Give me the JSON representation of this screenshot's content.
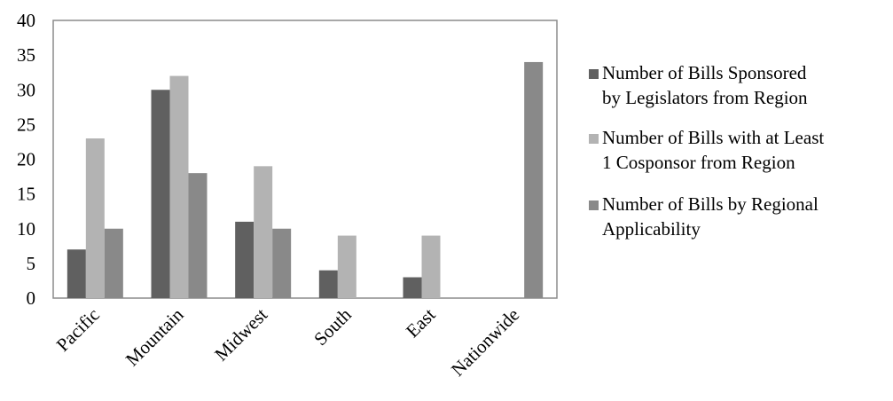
{
  "chart_data": {
    "type": "bar",
    "categories": [
      "Pacific",
      "Mountain",
      "Midwest",
      "South",
      "East",
      "Nationwide"
    ],
    "series": [
      {
        "name": [
          "Number of Bills Sponsored",
          "by Legislators from Region"
        ],
        "color": "#606060",
        "values": [
          7,
          30,
          11,
          4,
          3,
          0
        ]
      },
      {
        "name": [
          "Number of Bills with at Least",
          "1 Cosponsor from Region"
        ],
        "color": "#b3b3b3",
        "values": [
          23,
          32,
          19,
          9,
          9,
          0
        ]
      },
      {
        "name": [
          "Number of Bills by Regional",
          "Applicability"
        ],
        "color": "#898989",
        "values": [
          10,
          18,
          10,
          0,
          0,
          34
        ]
      }
    ],
    "ylim": [
      0,
      40
    ],
    "yticks": [
      0,
      5,
      10,
      15,
      20,
      25,
      30,
      35,
      40
    ],
    "grid": false,
    "legend": "right"
  }
}
